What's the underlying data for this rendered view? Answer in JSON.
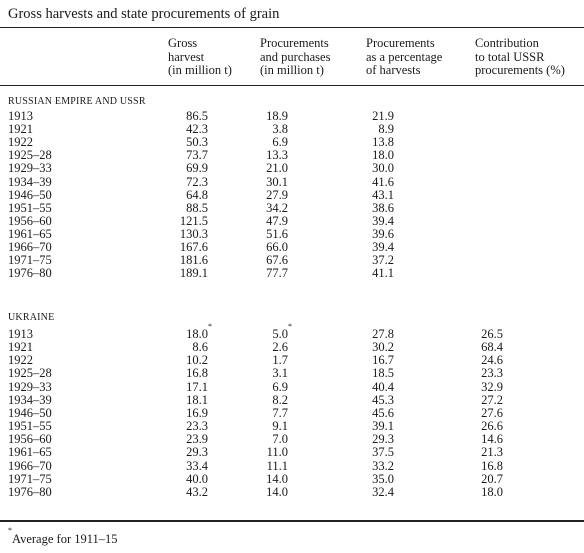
{
  "title": "Gross harvests and state procurements of grain",
  "headers": [
    [
      "Gross",
      "harvest",
      "(in million t)"
    ],
    [
      "Procurements",
      "and purchases",
      "(in million t)"
    ],
    [
      "Procurements",
      "as a percentage",
      "of harvests"
    ],
    [
      "Contribution",
      "to total USSR",
      "procurements (%)"
    ]
  ],
  "sections": [
    {
      "name": "RUSSIAN EMPIRE AND USSR",
      "rows": [
        [
          "1913",
          "86.5",
          "18.9",
          "21.9",
          ""
        ],
        [
          "1921",
          "42.3",
          "3.8",
          "8.9",
          ""
        ],
        [
          "1922",
          "50.3",
          "6.9",
          "13.8",
          ""
        ],
        [
          "1925–28",
          "73.7",
          "13.3",
          "18.0",
          ""
        ],
        [
          "1929–33",
          "69.9",
          "21.0",
          "30.0",
          ""
        ],
        [
          "1934–39",
          "72.3",
          "30.1",
          "41.6",
          ""
        ],
        [
          "1946–50",
          "64.8",
          "27.9",
          "43.1",
          ""
        ],
        [
          "1951–55",
          "88.5",
          "34.2",
          "38.6",
          ""
        ],
        [
          "1956–60",
          "121.5",
          "47.9",
          "39.4",
          ""
        ],
        [
          "1961–65",
          "130.3",
          "51.6",
          "39.6",
          ""
        ],
        [
          "1966–70",
          "167.6",
          "66.0",
          "39.4",
          ""
        ],
        [
          "1971–75",
          "181.6",
          "67.6",
          "37.2",
          ""
        ],
        [
          "1976–80",
          "189.1",
          "77.7",
          "41.1",
          ""
        ]
      ]
    },
    {
      "name": "UKRAINE",
      "rows": [
        [
          "1913",
          "18.0",
          "5.0",
          "27.8",
          "26.5"
        ],
        [
          "1921",
          "8.6",
          "2.6",
          "30.2",
          "68.4"
        ],
        [
          "1922",
          "10.2",
          "1.7",
          "16.7",
          "24.6"
        ],
        [
          "1925–28",
          "16.8",
          "3.1",
          "18.5",
          "23.3"
        ],
        [
          "1929–33",
          "17.1",
          "6.9",
          "40.4",
          "32.9"
        ],
        [
          "1934–39",
          "18.1",
          "8.2",
          "45.3",
          "27.2"
        ],
        [
          "1946–50",
          "16.9",
          "7.7",
          "45.6",
          "27.6"
        ],
        [
          "1951–55",
          "23.3",
          "9.1",
          "39.1",
          "26.6"
        ],
        [
          "1956–60",
          "23.9",
          "7.0",
          "29.3",
          "14.6"
        ],
        [
          "1961–65",
          "29.3",
          "11.0",
          "37.5",
          "21.3"
        ],
        [
          "1966–70",
          "33.4",
          "11.1",
          "33.2",
          "16.8"
        ],
        [
          "1971–75",
          "40.0",
          "14.0",
          "35.0",
          "20.7"
        ],
        [
          "1976–80",
          "43.2",
          "14.0",
          "32.4",
          "18.0"
        ]
      ]
    }
  ],
  "footnote_mark": "*",
  "footnote": "Average for 1911–15"
}
